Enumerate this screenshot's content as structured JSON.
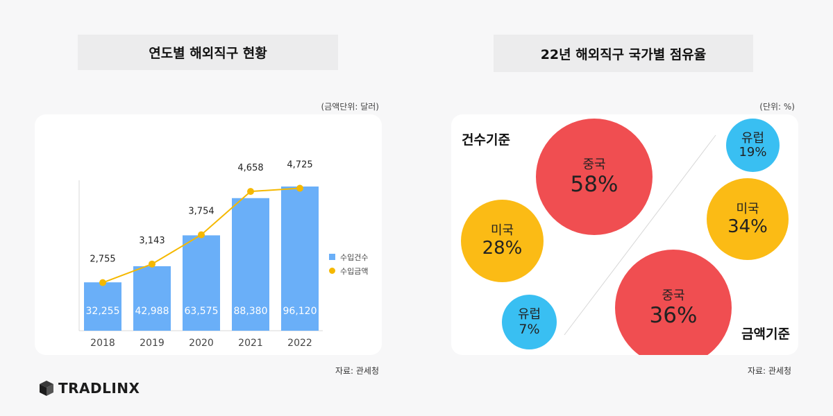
{
  "left": {
    "title": "연도별 해외직구 현황",
    "unit": "(금액단위: 달러)",
    "source": "자료: 관세청"
  },
  "right": {
    "title": "22년 해외직구 국가별 점유율",
    "unit": "(단위: %)",
    "source": "자료: 관세청",
    "count_basis_label": "건수기준",
    "amount_basis_label": "금액기준"
  },
  "logo": {
    "text": "TRADLINX"
  },
  "colors": {
    "bar": "#6aaff8",
    "line": "#f5b800",
    "red": "#f04e51",
    "yellow": "#fbbb15",
    "blue": "#39bff2"
  },
  "chart_data": [
    {
      "type": "bar",
      "categories": [
        "2018",
        "2019",
        "2020",
        "2021",
        "2022"
      ],
      "series": [
        {
          "name": "수입건수",
          "type": "bar",
          "values": [
            32255,
            42988,
            63575,
            88380,
            96120
          ],
          "labels": [
            "32,255",
            "42,988",
            "63,575",
            "88,380",
            "96,120"
          ]
        },
        {
          "name": "수입금액",
          "type": "line",
          "values": [
            2755,
            3143,
            3754,
            4658,
            4725
          ],
          "labels": [
            "2,755",
            "3,143",
            "3,754",
            "4,658",
            "4,725"
          ]
        }
      ],
      "legend": "right"
    },
    {
      "type": "bubble",
      "groups": [
        {
          "name": "건수기준",
          "values": [
            {
              "label": "중국",
              "value": 58,
              "text": "58%"
            },
            {
              "label": "미국",
              "value": 28,
              "text": "28%"
            },
            {
              "label": "유럽",
              "value": 7,
              "text": "7%"
            }
          ]
        },
        {
          "name": "금액기준",
          "values": [
            {
              "label": "유럽",
              "value": 19,
              "text": "19%"
            },
            {
              "label": "미국",
              "value": 34,
              "text": "34%"
            },
            {
              "label": "중국",
              "value": 36,
              "text": "36%"
            }
          ]
        }
      ]
    }
  ]
}
